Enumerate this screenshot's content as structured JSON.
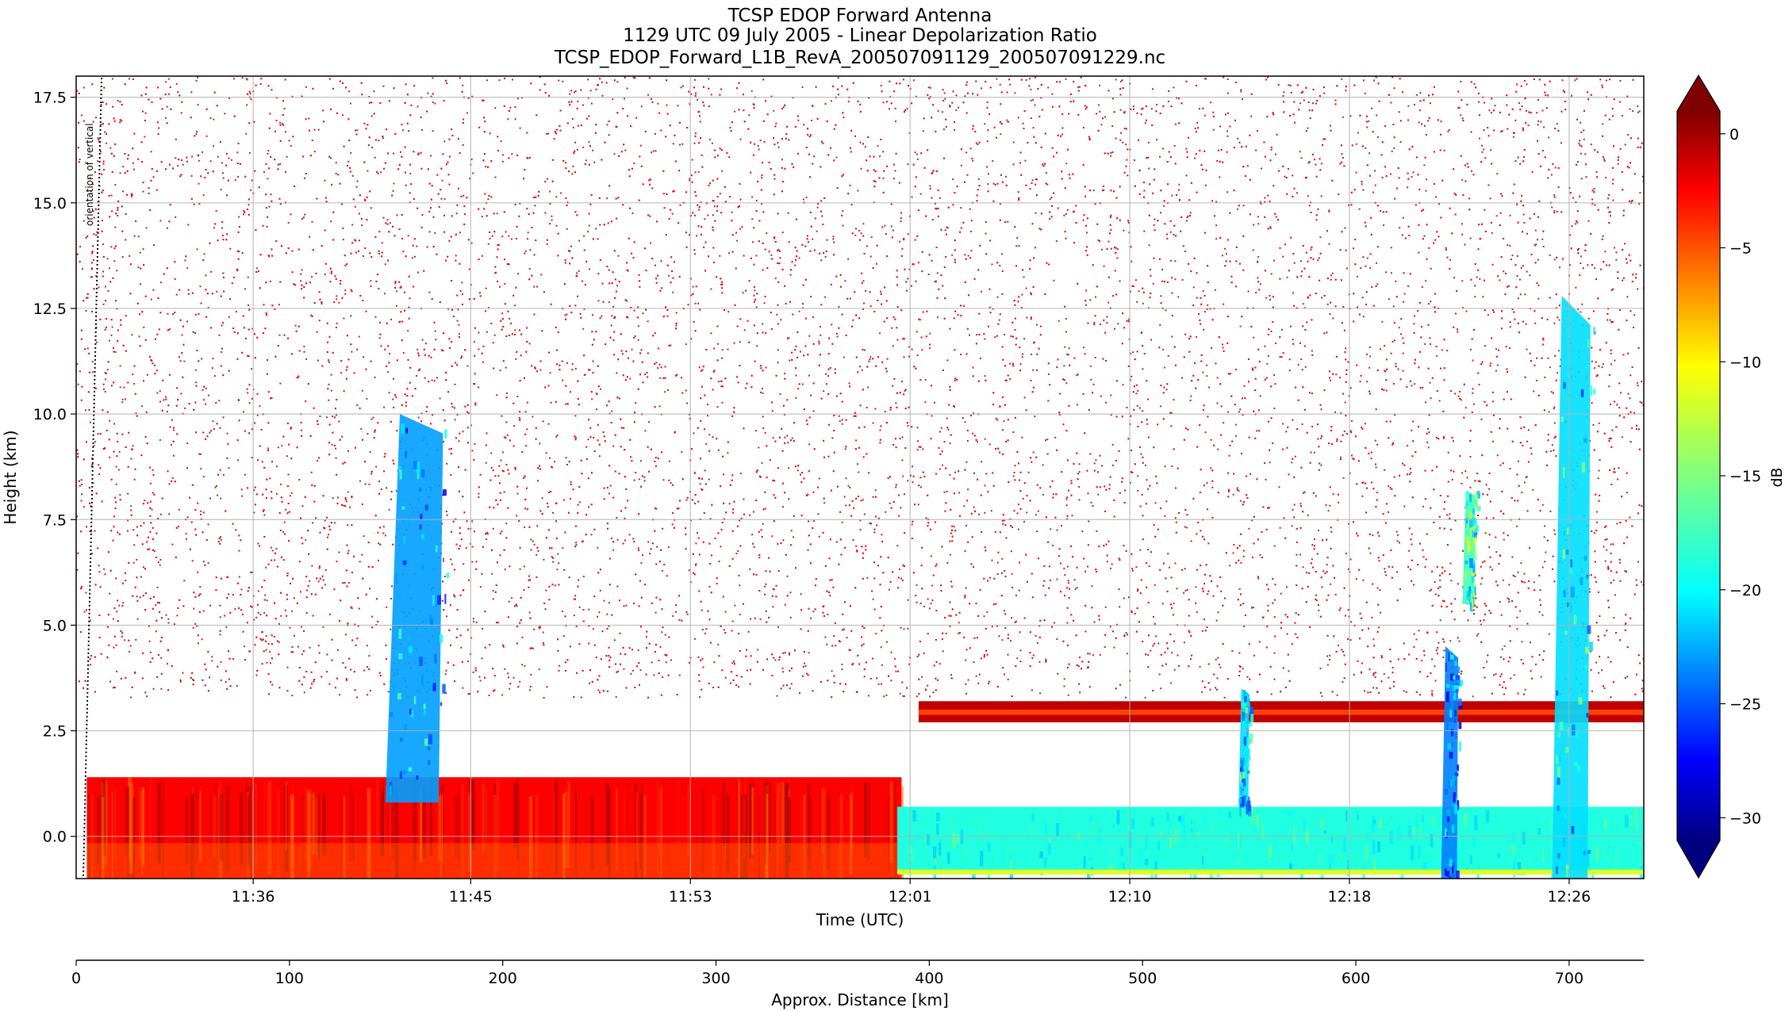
{
  "chart_data": {
    "type": "heatmap",
    "title_lines": [
      "TCSP EDOP Forward Antenna",
      "1129 UTC 09 July 2005 - Linear Depolarization Ratio",
      "TCSP_EDOP_Forward_L1B_RevA_200507091129_200507091229.nc"
    ],
    "xlabel": "Time (UTC)",
    "ylabel": "Height (km)",
    "x2label": "Approx. Distance [km]",
    "colorbar_label": "dB",
    "grid": true,
    "y_range": [
      -1.0,
      18.0
    ],
    "y_ticks": [
      {
        "v": 0.0,
        "label": "0.0"
      },
      {
        "v": 2.5,
        "label": "2.5"
      },
      {
        "v": 5.0,
        "label": "5.0"
      },
      {
        "v": 7.5,
        "label": "7.5"
      },
      {
        "v": 10.0,
        "label": "10.0"
      },
      {
        "v": 12.5,
        "label": "12.5"
      },
      {
        "v": 15.0,
        "label": "15.0"
      },
      {
        "v": 17.5,
        "label": "17.5"
      }
    ],
    "time_range_km": [
      0,
      735
    ],
    "time_ticks": [
      {
        "pos": 83,
        "label": "11:36"
      },
      {
        "pos": 185,
        "label": "11:45"
      },
      {
        "pos": 288,
        "label": "11:53"
      },
      {
        "pos": 391,
        "label": "12:01"
      },
      {
        "pos": 494,
        "label": "12:10"
      },
      {
        "pos": 597,
        "label": "12:18"
      },
      {
        "pos": 700,
        "label": "12:26"
      }
    ],
    "distance_ticks": [
      {
        "v": 0,
        "label": "0"
      },
      {
        "v": 100,
        "label": "100"
      },
      {
        "v": 200,
        "label": "200"
      },
      {
        "v": 300,
        "label": "300"
      },
      {
        "v": 400,
        "label": "400"
      },
      {
        "v": 500,
        "label": "500"
      },
      {
        "v": 600,
        "label": "600"
      },
      {
        "v": 700,
        "label": "700"
      }
    ],
    "colorbar": {
      "range": [
        -31,
        1
      ],
      "colormap": "jet",
      "ticks": [
        {
          "v": 0,
          "label": "0"
        },
        {
          "v": -5,
          "label": "−5"
        },
        {
          "v": -10,
          "label": "−10"
        },
        {
          "v": -15,
          "label": "−15"
        },
        {
          "v": -20,
          "label": "−20"
        },
        {
          "v": -25,
          "label": "−25"
        },
        {
          "v": -30,
          "label": "−30"
        }
      ]
    },
    "annotation": "orientation of vertical",
    "regions": [
      {
        "name": "noise field",
        "x": [
          0,
          735
        ],
        "y": [
          3.3,
          18.0
        ],
        "value_db": 0
      },
      {
        "name": "surface band left",
        "x": [
          5,
          387
        ],
        "y": [
          -1.0,
          1.4
        ],
        "value_db": -3
      },
      {
        "name": "surface band right",
        "x": [
          385,
          735
        ],
        "y": [
          -0.9,
          0.7
        ],
        "value_db": -18
      },
      {
        "name": "melting layer",
        "x": [
          395,
          735
        ],
        "y": [
          2.7,
          3.2
        ],
        "value_db": -1
      },
      {
        "name": "storm 1",
        "x": [
          145,
          172
        ],
        "y": [
          0.8,
          10.0
        ],
        "value_db": -22
      },
      {
        "name": "storm 2",
        "x": [
          545,
          550
        ],
        "y": [
          0.7,
          3.5
        ],
        "value_db": -20
      },
      {
        "name": "storm 3",
        "x": [
          640,
          648
        ],
        "y": [
          -1.0,
          4.5
        ],
        "value_db": -23
      },
      {
        "name": "storm 3 upper",
        "x": [
          650,
          656
        ],
        "y": [
          5.5,
          8.2
        ],
        "value_db": -17
      },
      {
        "name": "storm 4",
        "x": [
          692,
          710
        ],
        "y": [
          -1.0,
          12.8
        ],
        "value_db": -20
      }
    ]
  }
}
